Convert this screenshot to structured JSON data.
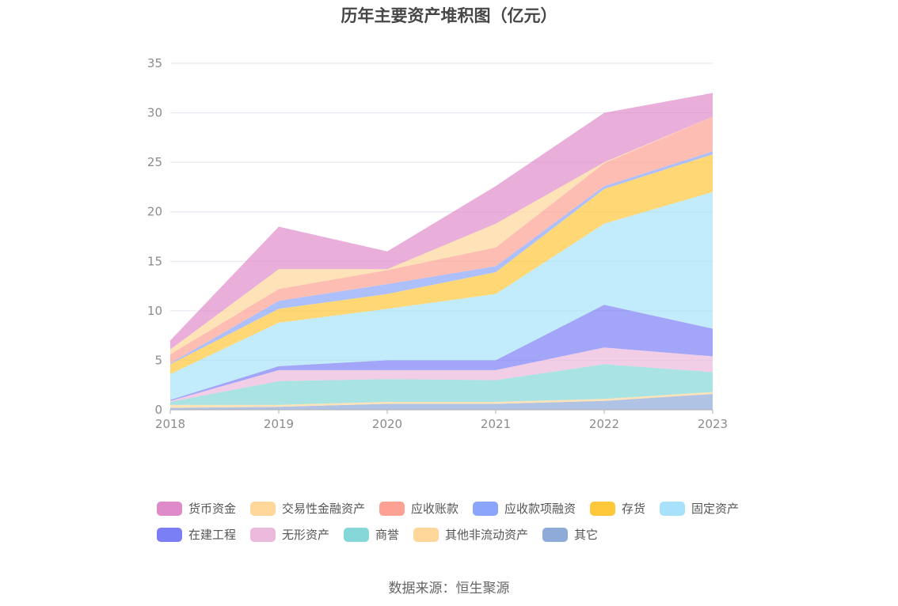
{
  "chart_data": {
    "type": "area",
    "stacked": true,
    "title": "历年主要资产堆积图（亿元）",
    "xlabel": "",
    "ylabel": "",
    "x": [
      "2018",
      "2019",
      "2020",
      "2021",
      "2022",
      "2023"
    ],
    "ylim": [
      0,
      35
    ],
    "yticks": [
      0,
      5,
      10,
      15,
      20,
      25,
      30,
      35
    ],
    "grid": true,
    "legend_position": "bottom",
    "series": [
      {
        "name": "其它",
        "color": "#8eaad8",
        "values": [
          0.2,
          0.3,
          0.6,
          0.6,
          0.9,
          1.6
        ]
      },
      {
        "name": "其他非流动资产",
        "color": "#ffd79a",
        "values": [
          0.3,
          0.2,
          0.2,
          0.2,
          0.2,
          0.2
        ]
      },
      {
        "name": "商誉",
        "color": "#86d7d7",
        "values": [
          0.3,
          2.4,
          2.3,
          2.2,
          3.5,
          2.0
        ]
      },
      {
        "name": "无形资产",
        "color": "#ebb9db",
        "values": [
          0.1,
          1.1,
          0.9,
          1.0,
          1.7,
          1.6
        ]
      },
      {
        "name": "在建工程",
        "color": "#7a7ff5",
        "values": [
          0.1,
          0.4,
          1.0,
          1.0,
          4.3,
          2.8
        ]
      },
      {
        "name": "固定资产",
        "color": "#a8e2fa",
        "values": [
          2.6,
          4.4,
          5.2,
          6.7,
          8.2,
          13.8
        ]
      },
      {
        "name": "存货",
        "color": "#ffc83a",
        "values": [
          1.0,
          1.4,
          1.5,
          2.2,
          3.5,
          3.8
        ]
      },
      {
        "name": "应收款项融资",
        "color": "#8aa5fa",
        "values": [
          0.1,
          0.8,
          1.0,
          0.6,
          0.3,
          0.3
        ]
      },
      {
        "name": "应收账款",
        "color": "#fda193",
        "values": [
          0.9,
          1.2,
          1.4,
          1.9,
          2.3,
          3.5
        ]
      },
      {
        "name": "交易性金融资产",
        "color": "#ffd79a",
        "values": [
          0.5,
          2.0,
          0.1,
          2.4,
          0.1,
          0
        ]
      },
      {
        "name": "货币资金",
        "color": "#df8bc9",
        "values": [
          0.9,
          4.3,
          1.8,
          3.8,
          5.0,
          2.4
        ]
      }
    ],
    "legend_order": [
      "货币资金",
      "交易性金融资产",
      "应收账款",
      "应收款项融资",
      "存货",
      "固定资产",
      "在建工程",
      "无形资产",
      "商誉",
      "其他非流动资产",
      "其它"
    ]
  },
  "source": "数据来源：恒生聚源"
}
